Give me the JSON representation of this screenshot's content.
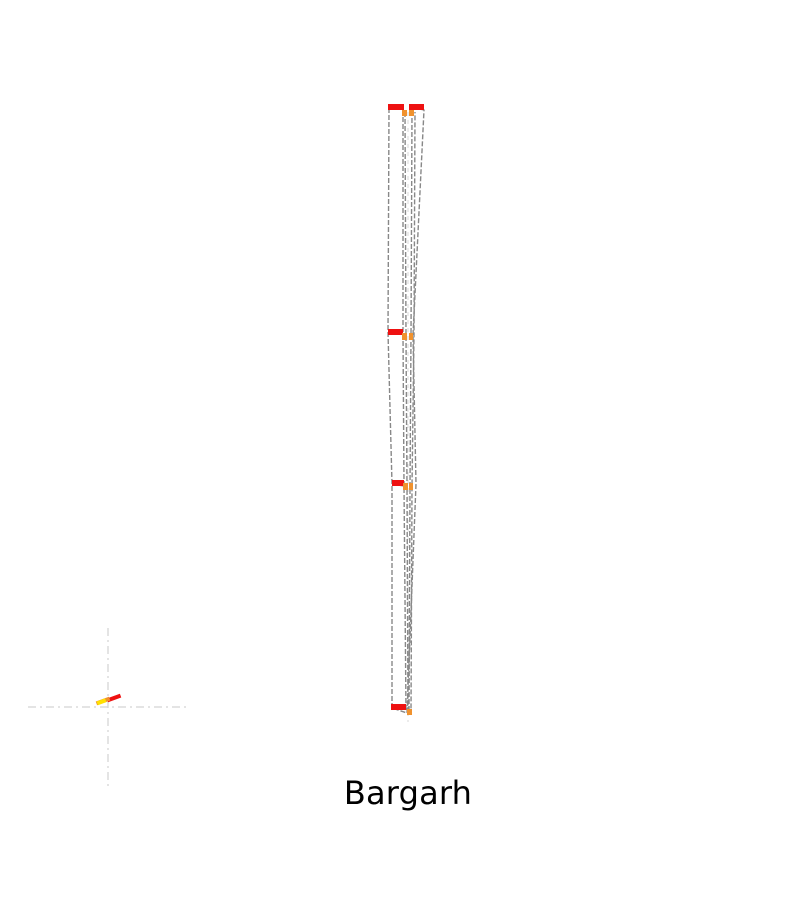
{
  "caption": "Bargarh",
  "colors": {
    "background": "#ffffff",
    "connector": "#888888",
    "marker_primary": "#ee1111",
    "marker_secondary": "#f0922e",
    "marker_highlight": "#ffe100",
    "axis_guides": "#d3d3d3"
  }
}
